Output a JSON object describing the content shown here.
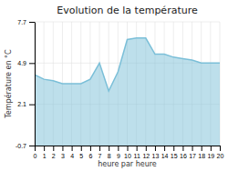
{
  "chart_data": {
    "type": "area",
    "title": "Evolution de la température",
    "xlabel": "heure par heure",
    "ylabel": "Température en °C",
    "x": [
      0,
      1,
      2,
      3,
      4,
      5,
      6,
      7,
      8,
      9,
      10,
      11,
      12,
      13,
      14,
      15,
      16,
      17,
      18,
      19,
      20
    ],
    "values": [
      4.1,
      3.8,
      3.7,
      3.5,
      3.5,
      3.5,
      3.8,
      4.9,
      3.0,
      4.3,
      6.5,
      6.6,
      6.6,
      5.5,
      5.5,
      5.3,
      5.2,
      5.1,
      4.9,
      4.9,
      4.9
    ],
    "color": "#7bbfd8",
    "xlim": [
      0,
      20
    ],
    "xticks": [
      0,
      1,
      2,
      3,
      4,
      5,
      6,
      7,
      8,
      9,
      10,
      11,
      12,
      13,
      14,
      15,
      16,
      17,
      18,
      19,
      20
    ],
    "ylim": [
      -0.7,
      7.7
    ],
    "yticks": [
      -0.7,
      2.1,
      4.9,
      7.7
    ],
    "grid": true
  }
}
